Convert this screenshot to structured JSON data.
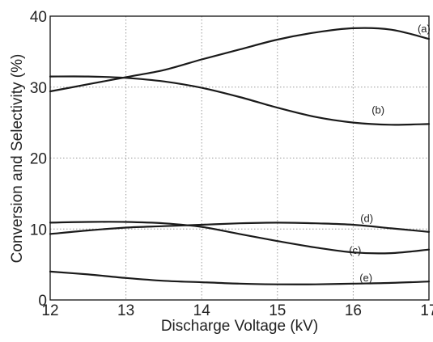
{
  "chart_data": {
    "type": "line",
    "title": "",
    "xlabel": "Discharge Voltage (kV)",
    "ylabel": "Conversion and Selectivity (%)",
    "xlim": [
      12,
      17
    ],
    "ylim": [
      0,
      40
    ],
    "xticks": [
      12,
      13,
      14,
      15,
      16,
      17
    ],
    "yticks": [
      0,
      10,
      20,
      30,
      40
    ],
    "grid": true,
    "series": [
      {
        "name": "(a)",
        "x": [
          12,
          12.5,
          13,
          13.5,
          14,
          14.5,
          15,
          15.5,
          16,
          16.5,
          17
        ],
        "y": [
          29.4,
          30.4,
          31.4,
          32.4,
          33.9,
          35.3,
          36.7,
          37.7,
          38.3,
          38.1,
          36.8
        ]
      },
      {
        "name": "(b)",
        "x": [
          12,
          12.5,
          13,
          13.5,
          14,
          14.5,
          15,
          15.5,
          16,
          16.5,
          17
        ],
        "y": [
          31.5,
          31.5,
          31.3,
          30.8,
          29.9,
          28.6,
          27.1,
          25.8,
          25.0,
          24.7,
          24.8
        ]
      },
      {
        "name": "(c)",
        "x": [
          12,
          12.5,
          13,
          13.5,
          14,
          14.5,
          15,
          15.5,
          16,
          16.5,
          17
        ],
        "y": [
          10.9,
          11.0,
          11.0,
          10.8,
          10.3,
          9.3,
          8.3,
          7.4,
          6.7,
          6.6,
          7.1
        ]
      },
      {
        "name": "(d)",
        "x": [
          12,
          12.5,
          13,
          13.5,
          14,
          14.5,
          15,
          15.5,
          16,
          16.5,
          17
        ],
        "y": [
          9.3,
          9.8,
          10.2,
          10.4,
          10.6,
          10.8,
          10.9,
          10.8,
          10.6,
          10.1,
          9.6
        ]
      },
      {
        "name": "(e)",
        "x": [
          12,
          12.5,
          13,
          13.5,
          14,
          14.5,
          15,
          15.5,
          16,
          16.5,
          17
        ],
        "y": [
          4.0,
          3.6,
          3.1,
          2.7,
          2.5,
          2.3,
          2.2,
          2.2,
          2.3,
          2.4,
          2.6
        ]
      }
    ]
  }
}
